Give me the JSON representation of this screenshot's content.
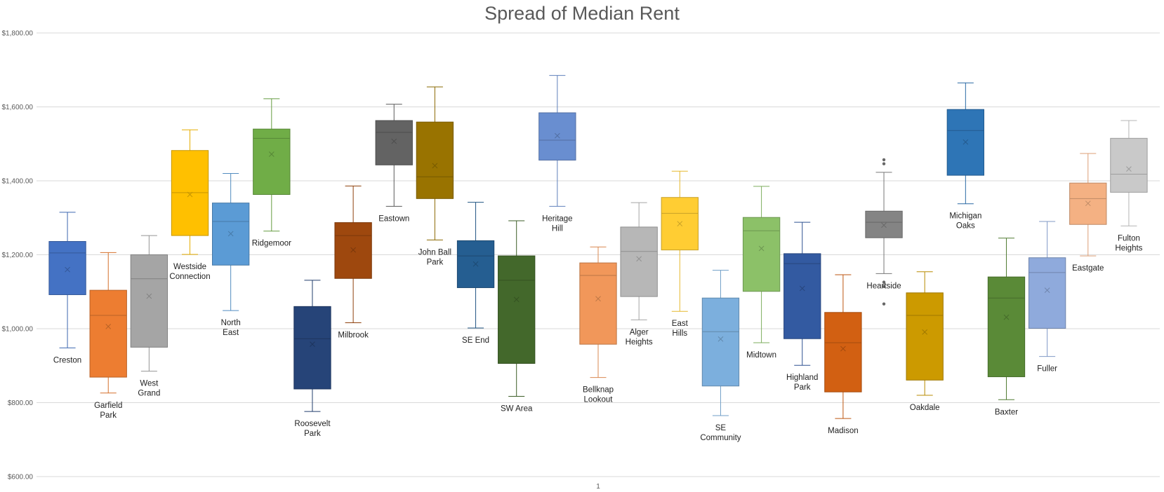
{
  "chart_data": {
    "type": "box",
    "title": "Spread of Median Rent",
    "xlabel": "",
    "ylabel": "",
    "x_tick_labels": [
      "1"
    ],
    "y_ticks": [
      "$600.00",
      "$800.00",
      "$1,000.00",
      "$1,200.00",
      "$1,400.00",
      "$1,600.00",
      "$1,800.00"
    ],
    "ylim": [
      600,
      1800
    ],
    "grid": true,
    "legend": "none",
    "series": [
      {
        "name": "Creston",
        "label": [
          "Creston"
        ],
        "color": "#4472C4",
        "min": 948,
        "q1": 1092,
        "median": 1205,
        "q3": 1236,
        "max": 1315,
        "mean": 1160,
        "outliers": []
      },
      {
        "name": "Garfield Park",
        "label": [
          "Garfield",
          "Park"
        ],
        "color": "#ED7D31",
        "min": 826,
        "q1": 869,
        "median": 1036,
        "q3": 1104,
        "max": 1206,
        "mean": 1006,
        "outliers": []
      },
      {
        "name": "West Grand",
        "label": [
          "West",
          "Grand"
        ],
        "color": "#A5A5A5",
        "min": 885,
        "q1": 950,
        "median": 1135,
        "q3": 1200,
        "max": 1252,
        "mean": 1088,
        "outliers": []
      },
      {
        "name": "Westside Connection",
        "label": [
          "Westside",
          "Connection"
        ],
        "color": "#FFC000",
        "min": 1201,
        "q1": 1252,
        "median": 1368,
        "q3": 1482,
        "max": 1538,
        "mean": 1363,
        "outliers": []
      },
      {
        "name": "North East",
        "label": [
          "North",
          "East"
        ],
        "color": "#5B9BD5",
        "min": 1049,
        "q1": 1172,
        "median": 1290,
        "q3": 1340,
        "max": 1420,
        "mean": 1257,
        "outliers": []
      },
      {
        "name": "Ridgemoor",
        "label": [
          "Ridgemoor"
        ],
        "color": "#70AD47",
        "min": 1264,
        "q1": 1363,
        "median": 1515,
        "q3": 1540,
        "max": 1622,
        "mean": 1472,
        "outliers": []
      },
      {
        "name": "Roosevelt Park",
        "label": [
          "Roosevelt",
          "Park"
        ],
        "color": "#264478",
        "min": 776,
        "q1": 837,
        "median": 973,
        "q3": 1060,
        "max": 1131,
        "mean": 958,
        "outliers": []
      },
      {
        "name": "Milbrook",
        "label": [
          "Milbrook"
        ],
        "color": "#9E480E",
        "min": 1016,
        "q1": 1136,
        "median": 1252,
        "q3": 1287,
        "max": 1386,
        "mean": 1213,
        "outliers": []
      },
      {
        "name": "Eastown",
        "label": [
          "Eastown"
        ],
        "color": "#636363",
        "min": 1331,
        "q1": 1443,
        "median": 1531,
        "q3": 1563,
        "max": 1607,
        "mean": 1507,
        "outliers": []
      },
      {
        "name": "John Ball Park",
        "label": [
          "John Ball",
          "Park"
        ],
        "color": "#997300",
        "min": 1240,
        "q1": 1352,
        "median": 1411,
        "q3": 1559,
        "max": 1654,
        "mean": 1441,
        "outliers": []
      },
      {
        "name": "SE End",
        "label": [
          "SE End"
        ],
        "color": "#255E91",
        "min": 1002,
        "q1": 1111,
        "median": 1197,
        "q3": 1238,
        "max": 1342,
        "mean": 1175,
        "outliers": []
      },
      {
        "name": "SW Area",
        "label": [
          "SW Area"
        ],
        "color": "#43682B",
        "min": 817,
        "q1": 906,
        "median": 1131,
        "q3": 1197,
        "max": 1292,
        "mean": 1079,
        "outliers": []
      },
      {
        "name": "Heritage Hill",
        "label": [
          "Heritage",
          "Hill"
        ],
        "color": "#698ED0",
        "min": 1331,
        "q1": 1456,
        "median": 1510,
        "q3": 1584,
        "max": 1685,
        "mean": 1522,
        "outliers": []
      },
      {
        "name": "Bellknap Lookout",
        "label": [
          "Bellknap",
          "Lookout"
        ],
        "color": "#F1975A",
        "min": 868,
        "q1": 958,
        "median": 1144,
        "q3": 1178,
        "max": 1221,
        "mean": 1081,
        "outliers": []
      },
      {
        "name": "Alger Heights",
        "label": [
          "Alger",
          "Heights"
        ],
        "color": "#B7B7B7",
        "min": 1024,
        "q1": 1087,
        "median": 1209,
        "q3": 1275,
        "max": 1341,
        "mean": 1189,
        "outliers": []
      },
      {
        "name": "East Hills",
        "label": [
          "East",
          "Hills"
        ],
        "color": "#FFCD33",
        "min": 1047,
        "q1": 1213,
        "median": 1312,
        "q3": 1355,
        "max": 1426,
        "mean": 1284,
        "outliers": []
      },
      {
        "name": "SE Community",
        "label": [
          "SE",
          "Community"
        ],
        "color": "#7CAFDD",
        "min": 765,
        "q1": 845,
        "median": 992,
        "q3": 1083,
        "max": 1158,
        "mean": 972,
        "outliers": []
      },
      {
        "name": "Midtown",
        "label": [
          "Midtown"
        ],
        "color": "#8CC168",
        "min": 962,
        "q1": 1101,
        "median": 1265,
        "q3": 1301,
        "max": 1385,
        "mean": 1217,
        "outliers": []
      },
      {
        "name": "Highland Park",
        "label": [
          "Highland",
          "Park"
        ],
        "color": "#335AA1",
        "min": 901,
        "q1": 973,
        "median": 1176,
        "q3": 1203,
        "max": 1288,
        "mean": 1109,
        "outliers": []
      },
      {
        "name": "Madison",
        "label": [
          "Madison"
        ],
        "color": "#D26012",
        "min": 757,
        "q1": 829,
        "median": 962,
        "q3": 1044,
        "max": 1146,
        "mean": 946,
        "outliers": []
      },
      {
        "name": "Heartside",
        "label": [
          "Heartside"
        ],
        "color": "#848484",
        "min": 1149,
        "q1": 1246,
        "median": 1288,
        "q3": 1318,
        "max": 1423,
        "mean": 1280,
        "outliers": [
          1446,
          1457,
          1114,
          1126,
          1067
        ]
      },
      {
        "name": "Oakdale",
        "label": [
          "Oakdale"
        ],
        "color": "#CC9A00",
        "min": 820,
        "q1": 861,
        "median": 1036,
        "q3": 1097,
        "max": 1154,
        "mean": 991,
        "outliers": []
      },
      {
        "name": "Michigan Oaks",
        "label": [
          "Michigan",
          "Oaks"
        ],
        "color": "#2E75B6",
        "min": 1338,
        "q1": 1415,
        "median": 1536,
        "q3": 1593,
        "max": 1665,
        "mean": 1505,
        "outliers": []
      },
      {
        "name": "Baxter",
        "label": [
          "Baxter"
        ],
        "color": "#5A8A37",
        "min": 808,
        "q1": 870,
        "median": 1083,
        "q3": 1140,
        "max": 1245,
        "mean": 1031,
        "outliers": []
      },
      {
        "name": "Fuller",
        "label": [
          "Fuller"
        ],
        "color": "#8FAADC",
        "min": 925,
        "q1": 1001,
        "median": 1152,
        "q3": 1192,
        "max": 1290,
        "mean": 1104,
        "outliers": []
      },
      {
        "name": "Eastgate",
        "label": [
          "Eastgate"
        ],
        "color": "#F4B183",
        "min": 1197,
        "q1": 1282,
        "median": 1352,
        "q3": 1394,
        "max": 1474,
        "mean": 1339,
        "outliers": []
      },
      {
        "name": "Fulton Heights",
        "label": [
          "Fulton",
          "Heights"
        ],
        "color": "#C9C9C9",
        "min": 1278,
        "q1": 1369,
        "median": 1418,
        "q3": 1515,
        "max": 1563,
        "mean": 1432,
        "outliers": []
      }
    ]
  }
}
